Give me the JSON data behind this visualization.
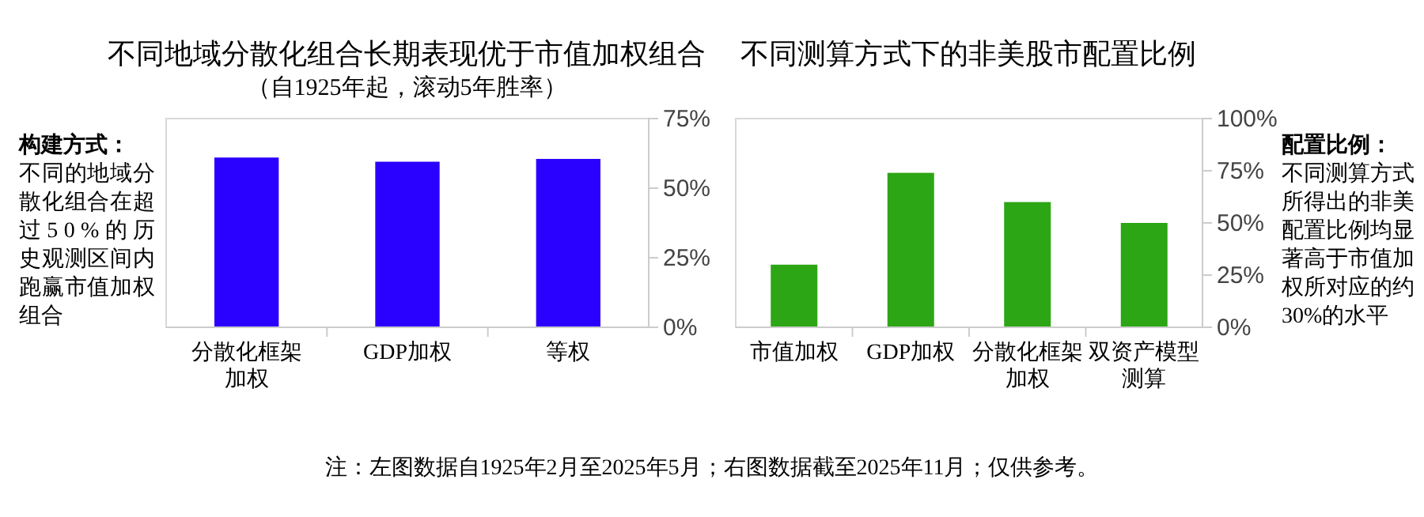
{
  "chart_data": [
    {
      "type": "bar",
      "title": "不同地域分散化组合长期表现优于市值加权组合",
      "subtitle": "（自1925年起，滚动5年胜率）",
      "categories": [
        "分散化框架加权",
        "GDP加权",
        "等权"
      ],
      "values": [
        61,
        59.5,
        60.5
      ],
      "color": "#2a00ff",
      "ylim": [
        0,
        75
      ],
      "yticks": [
        {
          "value": 0,
          "label": "0%"
        },
        {
          "value": 25,
          "label": "25%"
        },
        {
          "value": 50,
          "label": "50%"
        },
        {
          "value": 75,
          "label": "75%"
        }
      ],
      "annotations": [
        "构建方式：",
        "不同的地域分散化组合在超过50%的历史观测区间内跑赢市值加权组合"
      ]
    },
    {
      "type": "bar",
      "title": "不同测算方式下的非美股市配置比例",
      "categories": [
        "市值加权",
        "GDP加权",
        "分散化框架加权",
        "双资产模型测算"
      ],
      "values": [
        30,
        74,
        60,
        50
      ],
      "color": "#2ca614",
      "ylim": [
        0,
        100
      ],
      "yticks": [
        {
          "value": 0,
          "label": "0%"
        },
        {
          "value": 25,
          "label": "25%"
        },
        {
          "value": 50,
          "label": "50%"
        },
        {
          "value": 75,
          "label": "75%"
        },
        {
          "value": 100,
          "label": "100%"
        }
      ],
      "annotations": [
        "配置比例：",
        "不同测算方式所得出的非美配置比例均显著高于市值加权所对应的约30%的水平",
        "注：左图数据自1925年2月至2025年5月；右图数据截至2025年11月；仅供参考。"
      ]
    }
  ]
}
